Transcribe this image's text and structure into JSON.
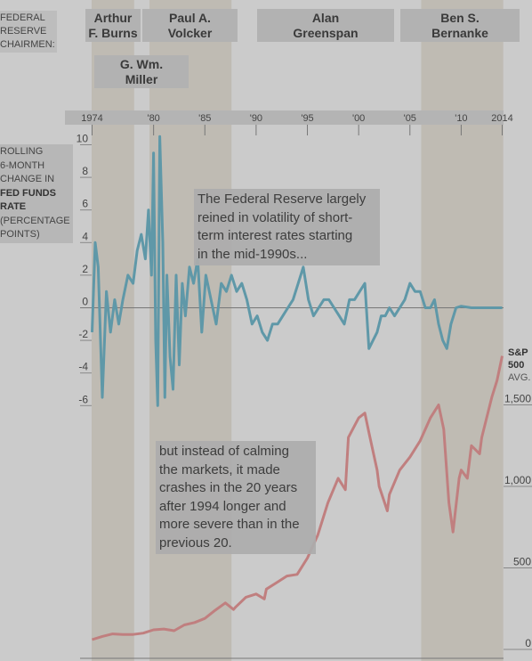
{
  "chairmen_header": {
    "line1": "FEDERAL",
    "line2": "RESERVE",
    "line3": "CHAIRMEN:"
  },
  "chairmen": [
    {
      "name_line1": "Arthur",
      "name_line2": "F. Burns",
      "start": 1970.1,
      "end": 1978.1
    },
    {
      "name_line1": "G. Wm.",
      "name_line2": "Miller",
      "start": 1978.2,
      "end": 1979.6
    },
    {
      "name_line1": "Paul A.",
      "name_line2": "Volcker",
      "start": 1979.6,
      "end": 1987.6
    },
    {
      "name_line1": "Alan",
      "name_line2": "Greenspan",
      "start": 1987.6,
      "end": 2006.1
    },
    {
      "name_line1": "Ben S.",
      "name_line2": "Bernanke",
      "start": 2006.1,
      "end": 2014.1
    }
  ],
  "fed_label": {
    "line1": "ROLLING",
    "line2": "6-MONTH",
    "line3": "CHANGE IN",
    "line4": "FED FUNDS",
    "line5": "RATE",
    "line6": "(PERCENTAGE",
    "line7": "POINTS)"
  },
  "sp_label": {
    "line1": "S&P",
    "line2": "500",
    "line3": "AVG."
  },
  "note_top": {
    "line1": "The Federal Reserve largely",
    "line2": "reined in volatility of short-",
    "line3": "term interest rates starting",
    "line4": "in the mid-1990s..."
  },
  "note_bottom": {
    "line1": "but instead of calming",
    "line2": "the markets, it made",
    "line3": "crashes in the 20 years",
    "line4": "after 1994 longer and",
    "line5": "more severe than in the",
    "line6": "previous 20."
  },
  "colors": {
    "fed_line": "#5f98a8",
    "sp_line": "#c07f7f",
    "shade": "#bdb8af",
    "zero_line": "#777777"
  },
  "chart_data": [
    {
      "type": "line",
      "name": "Rolling 6-month change in fed funds rate",
      "x_tick_labels": [
        "1974",
        "'80",
        "'85",
        "'90",
        "'95",
        "'00",
        "'05",
        "'10",
        "2014"
      ],
      "x_tick_values": [
        1974,
        1980,
        1985,
        1990,
        1995,
        2000,
        2005,
        2010,
        2014
      ],
      "y_tick_labels": [
        "10",
        "8",
        "6",
        "4",
        "2",
        "0",
        "-2",
        "-4",
        "-6"
      ],
      "y_tick_values": [
        10,
        8,
        6,
        4,
        2,
        0,
        -2,
        -4,
        -6
      ],
      "xlim": [
        1974,
        2014
      ],
      "ylim": [
        -6,
        10
      ],
      "x": [
        1974.0,
        1974.3,
        1974.6,
        1975.0,
        1975.4,
        1975.8,
        1976.2,
        1976.6,
        1977.0,
        1977.5,
        1978.0,
        1978.4,
        1978.8,
        1979.2,
        1979.5,
        1979.8,
        1980.0,
        1980.2,
        1980.4,
        1980.6,
        1980.9,
        1981.1,
        1981.3,
        1981.6,
        1981.9,
        1982.2,
        1982.5,
        1982.8,
        1983.1,
        1983.5,
        1983.9,
        1984.3,
        1984.7,
        1985.1,
        1985.6,
        1986.1,
        1986.6,
        1987.1,
        1987.6,
        1988.1,
        1988.6,
        1989.1,
        1989.6,
        1990.1,
        1990.6,
        1991.1,
        1991.6,
        1992.1,
        1992.6,
        1993.1,
        1993.6,
        1994.1,
        1994.6,
        1995.1,
        1995.6,
        1996.1,
        1996.6,
        1997.1,
        1997.6,
        1998.1,
        1998.6,
        1999.1,
        1999.6,
        2000.1,
        2000.6,
        2001.0,
        2001.4,
        2001.8,
        2002.2,
        2002.6,
        2003.0,
        2003.5,
        2004.0,
        2004.5,
        2005.0,
        2005.5,
        2006.0,
        2006.5,
        2007.0,
        2007.4,
        2007.8,
        2008.2,
        2008.6,
        2009.0,
        2009.5,
        2010.0,
        2011.0,
        2012.0,
        2013.0,
        2014.0
      ],
      "y": [
        -1.5,
        4.0,
        2.5,
        -5.5,
        1.0,
        -1.5,
        0.5,
        -1.0,
        0.5,
        2.0,
        1.5,
        3.5,
        4.5,
        3.0,
        6.0,
        2.0,
        9.5,
        -2.0,
        -6.0,
        10.5,
        4.0,
        -5.5,
        2.0,
        -3.0,
        -5.0,
        2.0,
        -3.5,
        1.5,
        -0.5,
        2.5,
        1.5,
        3.0,
        -1.5,
        2.0,
        0.5,
        -1.0,
        1.5,
        1.0,
        2.0,
        1.0,
        1.5,
        0.5,
        -1.0,
        -0.5,
        -1.5,
        -2.0,
        -1.0,
        -1.0,
        -0.5,
        0.0,
        0.5,
        1.5,
        2.5,
        0.5,
        -0.5,
        0.0,
        0.5,
        0.5,
        0.0,
        -0.5,
        -1.0,
        0.5,
        0.5,
        1.0,
        1.5,
        -2.5,
        -2.0,
        -1.5,
        -0.5,
        -0.5,
        0.0,
        -0.5,
        0.0,
        0.5,
        1.5,
        1.0,
        1.0,
        0.0,
        0.0,
        0.5,
        -1.0,
        -2.0,
        -2.5,
        -1.0,
        0.0,
        0.1,
        0.0,
        0.0,
        0.0,
        0.0
      ]
    },
    {
      "type": "line",
      "name": "S&P 500",
      "y_tick_labels": [
        "1,500",
        "1,000",
        "500",
        "0"
      ],
      "y_tick_values": [
        1500,
        1000,
        500,
        0
      ],
      "xlim": [
        1974,
        2014
      ],
      "ylim": [
        0,
        1500
      ],
      "x": [
        1974.0,
        1975.0,
        1976.0,
        1977.0,
        1978.0,
        1979.0,
        1980.0,
        1981.0,
        1982.0,
        1983.0,
        1984.0,
        1985.0,
        1986.0,
        1987.0,
        1987.8,
        1988.0,
        1989.0,
        1990.0,
        1990.8,
        1991.0,
        1992.0,
        1993.0,
        1994.0,
        1995.0,
        1996.0,
        1997.0,
        1998.0,
        1998.7,
        1999.0,
        2000.0,
        2000.6,
        2001.0,
        2001.8,
        2002.0,
        2002.8,
        2003.0,
        2004.0,
        2005.0,
        2006.0,
        2007.0,
        2007.8,
        2008.3,
        2008.8,
        2009.2,
        2009.8,
        2010.0,
        2010.6,
        2011.0,
        2011.8,
        2012.0,
        2013.0,
        2013.5,
        2014.0
      ],
      "y": [
        60,
        80,
        95,
        92,
        92,
        100,
        120,
        125,
        115,
        150,
        165,
        190,
        240,
        285,
        245,
        260,
        320,
        340,
        310,
        370,
        410,
        450,
        460,
        560,
        700,
        900,
        1050,
        980,
        1300,
        1420,
        1450,
        1330,
        1100,
        1000,
        850,
        950,
        1100,
        1180,
        1280,
        1420,
        1500,
        1350,
        900,
        720,
        1050,
        1100,
        1050,
        1250,
        1200,
        1300,
        1550,
        1650,
        1800
      ]
    }
  ]
}
